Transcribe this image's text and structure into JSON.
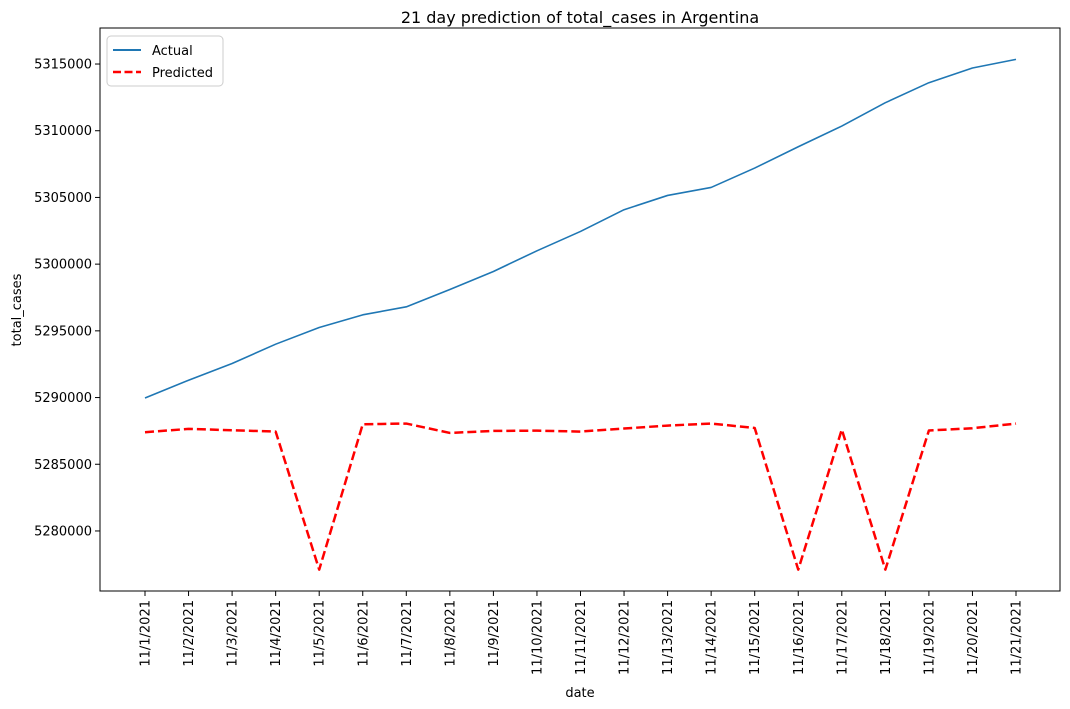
{
  "chart_data": {
    "type": "line",
    "title": "21 day prediction of total_cases in Argentina",
    "xlabel": "date",
    "ylabel": "total_cases",
    "x": [
      "11/1/2021",
      "11/2/2021",
      "11/3/2021",
      "11/4/2021",
      "11/5/2021",
      "11/6/2021",
      "11/7/2021",
      "11/8/2021",
      "11/9/2021",
      "11/10/2021",
      "11/11/2021",
      "11/12/2021",
      "11/13/2021",
      "11/14/2021",
      "11/15/2021",
      "11/16/2021",
      "11/17/2021",
      "11/18/2021",
      "11/19/2021",
      "11/20/2021",
      "11/21/2021"
    ],
    "yticks": [
      5280000,
      5285000,
      5290000,
      5295000,
      5300000,
      5305000,
      5310000,
      5315000
    ],
    "ylim": [
      5275500,
      5317700
    ],
    "grid": false,
    "legend_position": "top-left",
    "series": [
      {
        "name": "Actual",
        "color": "#1f77b4",
        "style": "solid",
        "values": [
          5289970,
          5291300,
          5292550,
          5294000,
          5295250,
          5296200,
          5296800,
          5298100,
          5299450,
          5301000,
          5302450,
          5304080,
          5305150,
          5305750,
          5307200,
          5308800,
          5310350,
          5312100,
          5313600,
          5314700,
          5315350
        ]
      },
      {
        "name": "Predicted",
        "color": "#ff0000",
        "style": "dashed",
        "values": [
          5287400,
          5287650,
          5287550,
          5287450,
          5277100,
          5288000,
          5288050,
          5287350,
          5287500,
          5287520,
          5287450,
          5287680,
          5287900,
          5288050,
          5287720,
          5277100,
          5287600,
          5277100,
          5287530,
          5287700,
          5288050
        ]
      }
    ]
  }
}
